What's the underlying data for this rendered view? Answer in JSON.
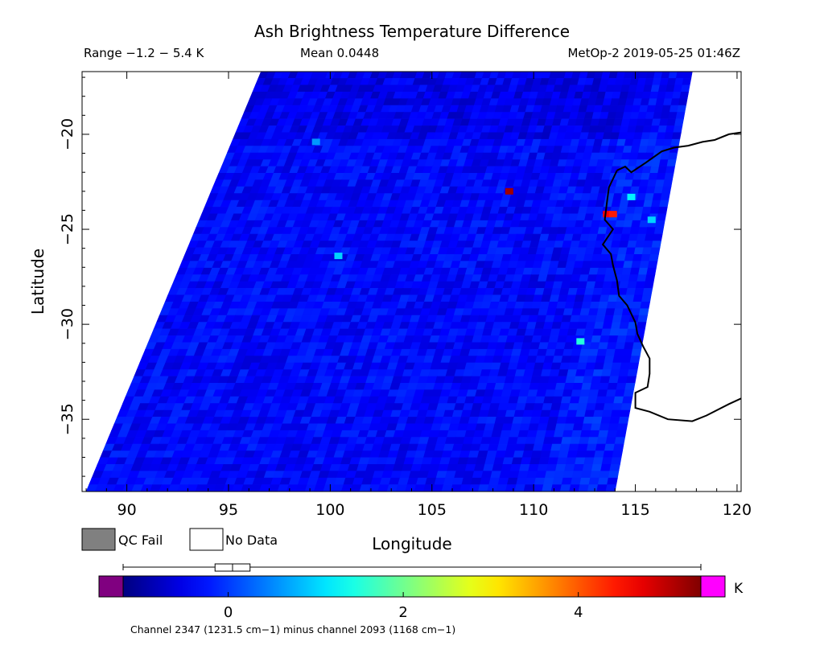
{
  "title": "Ash Brightness Temperature Difference",
  "header": {
    "range": "Range −1.2 − 5.4 K",
    "mean": "Mean 0.0448",
    "satellite_time": "MetOp-2 2019-05-25 01:46Z"
  },
  "legend": {
    "qc_fail": "QC Fail",
    "no_data": "No Data",
    "qc_fail_color": "#808080",
    "no_data_color": "#ffffff"
  },
  "colorbar": {
    "unit": "K",
    "min": -1.2,
    "max": 5.4,
    "ticks": [
      "0",
      "2",
      "4"
    ],
    "tick_values": [
      0,
      2,
      4
    ],
    "under_color": "#800080",
    "over_color": "#ff00ff",
    "caption": "Channel 2347 (1231.5 cm−1) minus channel 2093 (1168 cm−1)",
    "boxplot": {
      "whisker_low": -1.2,
      "q1": -0.15,
      "median": 0.05,
      "q3": 0.25,
      "whisker_high": 5.4
    }
  },
  "chart_data": {
    "type": "heatmap",
    "title": "Ash Brightness Temperature Difference",
    "xlabel": "Longitude",
    "ylabel": "Latitude",
    "xlim": [
      87.8,
      120.2
    ],
    "ylim": [
      -38.8,
      -16.7
    ],
    "xticks": [
      90,
      95,
      100,
      105,
      110,
      115,
      120
    ],
    "yticks": [
      -20,
      -25,
      -30,
      -35
    ],
    "swath_corners": {
      "top_left": [
        96.6,
        -16.7
      ],
      "top_right": [
        117.8,
        -16.7
      ],
      "bottom_left": [
        88.0,
        -38.8
      ],
      "bottom_right": [
        114.0,
        -38.8
      ]
    },
    "value_range": [
      -1.2,
      5.4
    ],
    "mean": 0.0448,
    "unit": "K",
    "background_value": -0.4,
    "features": [
      {
        "lon": 108.8,
        "lat": -23.0,
        "value": 5.2
      },
      {
        "lon": 113.6,
        "lat": -24.2,
        "value": 4.6
      },
      {
        "lon": 113.9,
        "lat": -24.2,
        "value": 4.4
      },
      {
        "lon": 114.8,
        "lat": -23.3,
        "value": 1.2
      },
      {
        "lon": 115.8,
        "lat": -24.5,
        "value": 1.0
      },
      {
        "lon": 100.4,
        "lat": -26.4,
        "value": 1.0
      },
      {
        "lon": 112.3,
        "lat": -30.9,
        "value": 1.5
      },
      {
        "lon": 99.3,
        "lat": -20.4,
        "value": 0.6
      }
    ],
    "coastline": [
      [
        114.1,
        -21.9
      ],
      [
        114.5,
        -21.7
      ],
      [
        114.8,
        -22.0
      ],
      [
        115.5,
        -21.5
      ],
      [
        116.3,
        -20.9
      ],
      [
        116.9,
        -20.7
      ],
      [
        117.6,
        -20.6
      ],
      [
        118.3,
        -20.4
      ],
      [
        118.9,
        -20.3
      ],
      [
        119.6,
        -20.0
      ],
      [
        120.2,
        -19.9
      ],
      [
        113.7,
        -22.8
      ],
      [
        113.6,
        -23.6
      ],
      [
        113.5,
        -24.5
      ],
      [
        113.9,
        -25.0
      ],
      [
        113.4,
        -25.8
      ],
      [
        113.8,
        -26.3
      ],
      [
        113.9,
        -26.9
      ],
      [
        114.1,
        -27.7
      ],
      [
        114.2,
        -28.5
      ],
      [
        114.6,
        -29.0
      ],
      [
        115.0,
        -29.9
      ],
      [
        115.1,
        -30.5
      ],
      [
        115.4,
        -31.2
      ],
      [
        115.7,
        -31.8
      ],
      [
        115.7,
        -32.6
      ],
      [
        115.6,
        -33.3
      ],
      [
        115.0,
        -33.6
      ],
      [
        115.0,
        -34.4
      ],
      [
        115.7,
        -34.6
      ],
      [
        116.6,
        -35.0
      ],
      [
        117.8,
        -35.1
      ],
      [
        118.5,
        -34.8
      ],
      [
        119.6,
        -34.2
      ],
      [
        120.2,
        -33.9
      ]
    ]
  }
}
